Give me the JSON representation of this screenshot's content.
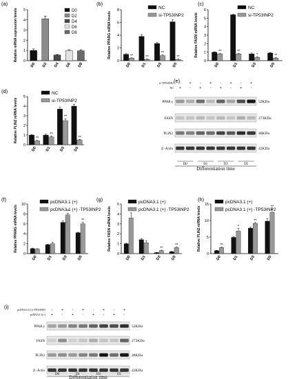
{
  "figure": {
    "title": ""
  },
  "chart_data": [
    {
      "id": "a",
      "panel_label": "(a)",
      "type": "bar",
      "ylabel": "Relative mRNA expression levels",
      "ylim": [
        0,
        5
      ],
      "yticks": [
        0,
        1,
        2,
        3,
        4,
        5
      ],
      "categories": [
        "D0",
        "D2",
        "D4",
        "D6",
        "D8"
      ],
      "legend": [
        "D0",
        "D2",
        "D4",
        "D6",
        "D8"
      ],
      "colors": [
        "#111111",
        "#8c8c8c",
        "#4a4a4a",
        "#e3e3e3",
        "#6a6a6a"
      ],
      "series": [
        {
          "name": "",
          "values": [
            1.0,
            4.1,
            0.55,
            0.98,
            0.97
          ]
        }
      ],
      "errors": [
        0.15,
        0.25,
        0.05,
        0.1,
        0.1
      ],
      "sig": [
        "",
        "",
        "",
        "",
        ""
      ]
    },
    {
      "id": "b",
      "panel_label": "(b)",
      "type": "bar",
      "ylabel": "Relative PPARG mRNA levels",
      "ylim": [
        0,
        8
      ],
      "yticks": [
        0,
        2,
        4,
        6,
        8
      ],
      "categories": [
        "D0",
        "D1",
        "D3",
        "D5"
      ],
      "legend": [
        "NC",
        "si-TP53INP2"
      ],
      "colors": [
        "#111111",
        "#999999"
      ],
      "series": [
        {
          "name": "NC",
          "values": [
            1.0,
            3.8,
            2.7,
            6.1
          ],
          "errors": [
            0.1,
            0.3,
            0.2,
            0.3
          ]
        },
        {
          "name": "si-TP53INP2",
          "values": [
            0.4,
            0.2,
            0.8,
            0.2
          ],
          "errors": [
            0.05,
            0.05,
            0.1,
            0.05
          ]
        }
      ],
      "sig": [
        "**",
        "**",
        "**",
        "**"
      ]
    },
    {
      "id": "c",
      "panel_label": "(c)",
      "type": "bar",
      "ylabel": "Relative FASN mRNA levels",
      "ylim": [
        0,
        6
      ],
      "yticks": [
        0,
        1,
        2,
        3,
        4,
        5,
        6
      ],
      "categories": [
        "D0",
        "D1",
        "D3",
        "D5"
      ],
      "legend": [
        "NC",
        "si-TP53INP2"
      ],
      "colors": [
        "#111111",
        "#999999"
      ],
      "series": [
        {
          "name": "NC",
          "values": [
            1.0,
            5.4,
            0.8,
            0.9
          ],
          "errors": [
            0.05,
            0.05,
            0.1,
            0.05
          ]
        },
        {
          "name": "si-TP53INP2",
          "values": [
            0.8,
            0.8,
            0.4,
            0.3
          ],
          "errors": [
            0.05,
            0.05,
            0.05,
            0.05
          ]
        }
      ],
      "sig": [
        "**",
        "**",
        "*",
        "**"
      ]
    },
    {
      "id": "d",
      "panel_label": "(d)",
      "type": "bar",
      "ylabel": "Relative PLIN2 mRNA levels",
      "ylim": [
        0,
        5
      ],
      "yticks": [
        0,
        1,
        2,
        3,
        4,
        5
      ],
      "categories": [
        "D0",
        "D1",
        "D3",
        "D5"
      ],
      "legend": [
        "NC",
        "si-TP53INP2"
      ],
      "colors": [
        "#111111",
        "#999999"
      ],
      "series": [
        {
          "name": "NC",
          "values": [
            1.0,
            1.0,
            3.7,
            4.0
          ],
          "errors": [
            0.05,
            0.1,
            0.2,
            0.2
          ]
        },
        {
          "name": "si-TP53INP2",
          "values": [
            0.4,
            0.8,
            2.5,
            0.5
          ],
          "errors": [
            0.05,
            0.1,
            0.2,
            0.05
          ]
        }
      ],
      "sig": [
        "**",
        "**",
        "**",
        "**"
      ]
    },
    {
      "id": "f",
      "panel_label": "(f)",
      "type": "bar",
      "ylabel": "Relative PPARG mRNA levels",
      "ylim": [
        0,
        10
      ],
      "yticks": [
        0,
        2,
        4,
        6,
        8,
        10
      ],
      "categories": [
        "D0",
        "D1",
        "D3",
        "D5"
      ],
      "legend": [
        "pcDNA3.1 (+)",
        "pcDNA3.1 (+) -TP53INP2"
      ],
      "colors": [
        "#111111",
        "#999999"
      ],
      "series": [
        {
          "name": "pcDNA3.1 (+)",
          "values": [
            1.0,
            1.8,
            6.3,
            4.2
          ],
          "errors": [
            0.1,
            0.1,
            0.3,
            0.1
          ]
        },
        {
          "name": "pcDNA3.1 (+) -TP53INP2",
          "values": [
            0.9,
            2.0,
            7.8,
            6.0
          ],
          "errors": [
            0.1,
            0.3,
            0.3,
            0.3
          ]
        }
      ],
      "sig": [
        "",
        "",
        "**",
        "**"
      ]
    },
    {
      "id": "g",
      "panel_label": "(g)",
      "type": "bar",
      "ylabel": "Relative FASN mRNA levels",
      "ylim": [
        0,
        5
      ],
      "yticks": [
        0,
        1,
        2,
        3,
        4,
        5
      ],
      "categories": [
        "D0",
        "D1",
        "D3",
        "D5"
      ],
      "legend": [
        "pcDNA3.1 (+)",
        "pcDNA3.1 (+) -TP53INP2"
      ],
      "colors": [
        "#111111",
        "#999999"
      ],
      "series": [
        {
          "name": "pcDNA3.1 (+)",
          "values": [
            1.0,
            1.4,
            0.1,
            0.2
          ],
          "errors": [
            0.05,
            0.1,
            0.02,
            0.02
          ]
        },
        {
          "name": "pcDNA3.1 (+) -TP53INP2",
          "values": [
            3.6,
            1.1,
            0.3,
            0.6
          ],
          "errors": [
            0.5,
            0.2,
            0.05,
            0.05
          ]
        }
      ],
      "sig": [
        "**",
        "",
        "**",
        "**"
      ]
    },
    {
      "id": "h",
      "panel_label": "(h)",
      "type": "bar",
      "ylabel": "Relative PLIN2 mRNA levels",
      "ylim": [
        0,
        15
      ],
      "yticks": [
        0,
        5,
        10,
        15
      ],
      "categories": [
        "D0",
        "D1",
        "D3",
        "D5"
      ],
      "legend": [
        "pcDNA3.1 (+)",
        "pcDNA3.1 (+) -TP53INP2"
      ],
      "colors": [
        "#111111",
        "#999999"
      ],
      "series": [
        {
          "name": "pcDNA3.1 (+)",
          "values": [
            0.9,
            4.9,
            7.7,
            9.8
          ],
          "errors": [
            0.1,
            0.2,
            0.3,
            0.8
          ]
        },
        {
          "name": "pcDNA3.1 (+) -TP53INP2",
          "values": [
            1.8,
            6.8,
            9.1,
            12.5
          ],
          "errors": [
            0.2,
            0.8,
            0.3,
            1.0
          ]
        }
      ],
      "sig": [
        "**",
        "*",
        "**",
        "**"
      ]
    }
  ],
  "blots": [
    {
      "id": "e",
      "panel_label": "(e)",
      "conditions": [
        {
          "label": "si-TP53INP2",
          "marks": [
            "-",
            "+",
            "-",
            "+",
            "-",
            "+",
            "-",
            "+"
          ]
        },
        {
          "label": "NC",
          "marks": [
            "+",
            "-",
            "+",
            "-",
            "+",
            "-",
            "+",
            "-"
          ]
        }
      ],
      "rows": [
        {
          "protein": "PPAR γ",
          "size": "52KDa",
          "intensity": [
            0.35,
            0.25,
            0.55,
            0.2,
            0.6,
            0.3,
            0.7,
            0.95
          ]
        },
        {
          "protein": "FASN",
          "size": "273KDa",
          "intensity": [
            0.15,
            0.15,
            0.2,
            0.15,
            0.2,
            0.15,
            0.25,
            0.2
          ]
        },
        {
          "protein": "PLIN2",
          "size": "48KDa",
          "intensity": [
            0.5,
            0.45,
            0.6,
            0.55,
            0.75,
            0.65,
            0.85,
            0.8
          ]
        },
        {
          "protein": "β -Actin",
          "size": "42KDa",
          "intensity": [
            0.8,
            0.8,
            0.8,
            0.8,
            0.8,
            0.8,
            0.8,
            0.8
          ]
        }
      ],
      "groups": [
        "D0",
        "D1",
        "D3",
        "D5"
      ],
      "xlabel": "Differentiation time"
    },
    {
      "id": "i",
      "panel_label": "(i)",
      "conditions": [
        {
          "label": "pcDNA3.1(+)-TP53INP2",
          "marks": [
            "-",
            "+",
            "-",
            "+",
            "-",
            "+",
            "-",
            "+"
          ]
        },
        {
          "label": "pcDNA3.1(+)",
          "marks": [
            "+",
            "-",
            "+",
            "-",
            "+",
            "-",
            "+",
            "-"
          ]
        }
      ],
      "rows": [
        {
          "protein": "PPAR γ",
          "size": "52KDa",
          "intensity": [
            0.3,
            0.35,
            0.45,
            0.5,
            0.6,
            0.75,
            0.7,
            0.85
          ]
        },
        {
          "protein": "FASN",
          "size": "273KDa",
          "intensity": [
            0.1,
            0.4,
            0.1,
            0.15,
            0.25,
            0.15,
            0.15,
            0.6
          ]
        },
        {
          "protein": "PLIN2",
          "size": "48KDa",
          "intensity": [
            0.35,
            0.4,
            0.35,
            0.45,
            0.5,
            0.95,
            0.55,
            0.95
          ]
        },
        {
          "protein": "β -Actin",
          "size": "42KDa",
          "intensity": [
            0.8,
            0.8,
            0.8,
            0.8,
            0.8,
            0.8,
            0.8,
            0.8
          ]
        }
      ],
      "groups": [
        "D0",
        "D1",
        "D3",
        "D5"
      ],
      "xlabel": "Differentiation time"
    }
  ]
}
